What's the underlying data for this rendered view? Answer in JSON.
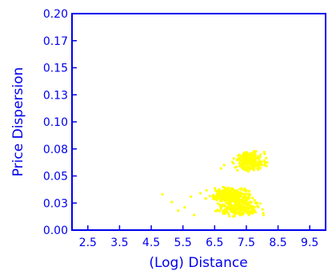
{
  "colors": {
    "axis": "#0000ee",
    "points": "#ffff00",
    "background": "#ffffff"
  },
  "chart_data": {
    "type": "scatter",
    "title": "",
    "xlabel": "(Log) Distance",
    "ylabel": "Price Dispersion",
    "xlim": [
      2.0,
      10.0
    ],
    "ylim": [
      0.0,
      0.2
    ],
    "grid": false,
    "x_ticks": [
      {
        "value": 2.5,
        "label": "2.5"
      },
      {
        "value": 3.5,
        "label": "3.5"
      },
      {
        "value": 4.5,
        "label": "4.5"
      },
      {
        "value": 5.5,
        "label": "5.5"
      },
      {
        "value": 6.5,
        "label": "6.5"
      },
      {
        "value": 7.5,
        "label": "7.5"
      },
      {
        "value": 8.5,
        "label": "8.5"
      },
      {
        "value": 9.5,
        "label": "9.5"
      }
    ],
    "y_ticks": [
      {
        "value": 0.0,
        "label": "0.00"
      },
      {
        "value": 0.025,
        "label": "0.03"
      },
      {
        "value": 0.05,
        "label": "0.05"
      },
      {
        "value": 0.075,
        "label": "0.08"
      },
      {
        "value": 0.1,
        "label": "0.10"
      },
      {
        "value": 0.125,
        "label": "0.13"
      },
      {
        "value": 0.15,
        "label": "0.15"
      },
      {
        "value": 0.175,
        "label": "0.17"
      },
      {
        "value": 0.2,
        "label": "0.20"
      }
    ],
    "clusters": [
      {
        "description": "upper cluster",
        "x_range": [
          6.9,
          8.3
        ],
        "y_range": [
          0.054,
          0.074
        ],
        "approx_count": 220
      },
      {
        "description": "middle cluster",
        "x_range": [
          6.1,
          7.9
        ],
        "y_range": [
          0.025,
          0.04
        ],
        "approx_count": 260
      },
      {
        "description": "lower cluster",
        "x_range": [
          6.3,
          8.2
        ],
        "y_range": [
          0.012,
          0.028
        ],
        "approx_count": 260
      }
    ],
    "outliers": [
      {
        "x": 4.85,
        "y": 0.033
      },
      {
        "x": 5.15,
        "y": 0.026
      },
      {
        "x": 5.35,
        "y": 0.018
      },
      {
        "x": 5.55,
        "y": 0.021
      },
      {
        "x": 5.75,
        "y": 0.031
      },
      {
        "x": 5.85,
        "y": 0.014
      },
      {
        "x": 6.05,
        "y": 0.034
      },
      {
        "x": 6.7,
        "y": 0.057
      },
      {
        "x": 6.8,
        "y": 0.06
      }
    ]
  }
}
